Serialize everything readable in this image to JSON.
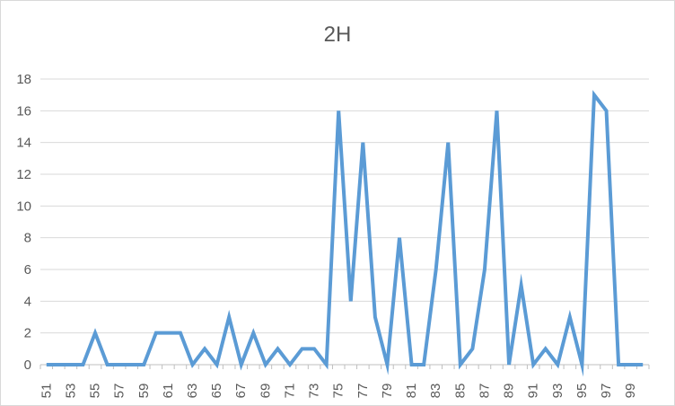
{
  "chart_data": {
    "type": "line",
    "title": "2H",
    "xlabel": "",
    "ylabel": "",
    "x": [
      51,
      52,
      53,
      54,
      55,
      56,
      57,
      58,
      59,
      60,
      61,
      62,
      63,
      64,
      65,
      66,
      67,
      68,
      69,
      70,
      71,
      72,
      73,
      74,
      75,
      76,
      77,
      78,
      79,
      80,
      81,
      82,
      83,
      84,
      85,
      86,
      87,
      88,
      89,
      90,
      91,
      92,
      93,
      94,
      95,
      96,
      97,
      98,
      99,
      100
    ],
    "x_tick_labels": [
      "51",
      "53",
      "55",
      "57",
      "59",
      "61",
      "63",
      "65",
      "67",
      "69",
      "71",
      "73",
      "75",
      "77",
      "79",
      "81",
      "83",
      "85",
      "87",
      "89",
      "91",
      "93",
      "95",
      "97",
      "99"
    ],
    "ylim": [
      0,
      18
    ],
    "y_ticks": [
      0,
      2,
      4,
      6,
      8,
      10,
      12,
      14,
      16,
      18
    ],
    "grid": true,
    "series": [
      {
        "name": "2H",
        "color": "#5b9bd5",
        "values": [
          0,
          0,
          0,
          0,
          2,
          0,
          0,
          0,
          0,
          2,
          2,
          2,
          0,
          1,
          0,
          3,
          0,
          2,
          0,
          1,
          0,
          1,
          1,
          0,
          16,
          4,
          14,
          3,
          0,
          8,
          0,
          0,
          6,
          14,
          0,
          1,
          6,
          16,
          0,
          5,
          0,
          1,
          0,
          3,
          0,
          17,
          16,
          0,
          0,
          0
        ]
      }
    ]
  }
}
